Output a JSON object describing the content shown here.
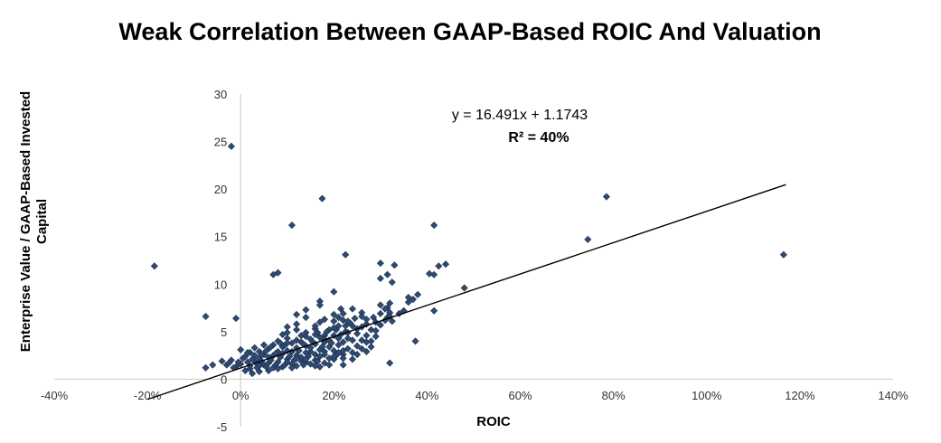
{
  "chart_data": {
    "type": "scatter",
    "title": "Weak Correlation Between GAAP-Based ROIC And Valuation",
    "xlabel": "ROIC",
    "ylabel_lines": [
      "Enterprise Value / GAAP-Based Invested",
      "Capital"
    ],
    "xlim": [
      -0.4,
      1.4
    ],
    "ylim": [
      -5,
      30
    ],
    "x_ticks": [
      -0.4,
      -0.2,
      0,
      0.2,
      0.4,
      0.6,
      0.8,
      1.0,
      1.2,
      1.4
    ],
    "x_tick_labels": [
      "-40%",
      "-20%",
      "0%",
      "20%",
      "40%",
      "60%",
      "80%",
      "100%",
      "120%",
      "140%"
    ],
    "y_ticks": [
      -5,
      0,
      5,
      10,
      15,
      20,
      25,
      30
    ],
    "y_tick_labels": [
      "-5",
      "0",
      "5",
      "10",
      "15",
      "20",
      "25",
      "30"
    ],
    "grid": false,
    "legend": "none",
    "marker": "diamond",
    "marker_color": "#2f4b73",
    "trendline": {
      "slope": 16.491,
      "intercept": 1.1743,
      "x_range": [
        -0.2,
        1.17
      ],
      "color": "#000000"
    },
    "equation_label": "y = 16.491x + 1.1743",
    "r2_label": "R² = 40%",
    "series": [
      {
        "points": [
          [
            -0.185,
            11.9
          ],
          [
            -0.075,
            6.6
          ],
          [
            -0.075,
            1.2
          ],
          [
            -0.06,
            1.5
          ],
          [
            -0.02,
            24.5
          ],
          [
            -0.01,
            6.4
          ],
          [
            0.175,
            19.0
          ],
          [
            0.11,
            16.2
          ],
          [
            0.08,
            11.2
          ],
          [
            0.07,
            11.0
          ],
          [
            0.225,
            13.1
          ],
          [
            0.415,
            16.2
          ],
          [
            0.785,
            19.2
          ],
          [
            0.745,
            14.7
          ],
          [
            1.165,
            13.1
          ],
          [
            0.48,
            9.6
          ],
          [
            0.425,
            11.9
          ],
          [
            0.44,
            12.1
          ],
          [
            0.415,
            11.0
          ],
          [
            0.405,
            11.1
          ],
          [
            0.33,
            12.0
          ],
          [
            0.3,
            12.2
          ],
          [
            0.315,
            11.0
          ],
          [
            0.325,
            10.2
          ],
          [
            0.3,
            10.6
          ],
          [
            0.38,
            8.9
          ],
          [
            0.37,
            8.4
          ],
          [
            0.36,
            8.1
          ],
          [
            0.415,
            7.2
          ],
          [
            0.375,
            4.0
          ],
          [
            0.32,
            1.7
          ],
          [
            0.285,
            6.5
          ],
          [
            0.3,
            7.8
          ],
          [
            0.315,
            7.5
          ],
          [
            0.32,
            7.0
          ],
          [
            0.325,
            6.1
          ],
          [
            0.32,
            8.0
          ],
          [
            0.315,
            6.5
          ],
          [
            0.2,
            9.2
          ],
          [
            0.17,
            8.2
          ],
          [
            0.17,
            7.8
          ],
          [
            0.215,
            7.4
          ],
          [
            0.24,
            7.4
          ],
          [
            0.26,
            7.0
          ],
          [
            0.14,
            7.3
          ],
          [
            0.12,
            6.8
          ],
          [
            0.1,
            4.9
          ],
          [
            0.12,
            5.2
          ],
          [
            0.14,
            4.9
          ],
          [
            0.16,
            5.3
          ],
          [
            0.17,
            6.0
          ],
          [
            0.18,
            4.6
          ],
          [
            0.19,
            5.2
          ],
          [
            0.2,
            6.1
          ],
          [
            0.21,
            5.6
          ],
          [
            0.22,
            6.2
          ],
          [
            0.225,
            5.0
          ],
          [
            0.23,
            4.3
          ],
          [
            0.25,
            4.8
          ],
          [
            0.26,
            5.5
          ],
          [
            0.27,
            5.8
          ],
          [
            0.28,
            5.2
          ],
          [
            0.29,
            6.0
          ],
          [
            0.24,
            4.1
          ],
          [
            0.25,
            3.5
          ],
          [
            0.27,
            3.9
          ],
          [
            0.23,
            3.2
          ],
          [
            0.21,
            3.6
          ],
          [
            0.22,
            2.6
          ],
          [
            0.2,
            3.0
          ],
          [
            0.19,
            2.2
          ],
          [
            0.18,
            1.7
          ],
          [
            0.17,
            2.4
          ],
          [
            0.16,
            2.0
          ],
          [
            0.15,
            1.6
          ],
          [
            0.14,
            2.8
          ],
          [
            0.13,
            1.9
          ],
          [
            0.12,
            2.5
          ],
          [
            0.11,
            1.6
          ],
          [
            0.1,
            2.1
          ],
          [
            0.09,
            2.7
          ],
          [
            0.08,
            1.8
          ],
          [
            0.07,
            1.2
          ],
          [
            0.06,
            2.3
          ],
          [
            0.05,
            1.5
          ],
          [
            0.04,
            0.8
          ],
          [
            0.03,
            1.9
          ],
          [
            0.02,
            1.1
          ],
          [
            0.01,
            2.4
          ],
          [
            0.0,
            1.6
          ],
          [
            -0.01,
            1.3
          ],
          [
            -0.02,
            2.0
          ],
          [
            -0.03,
            1.5
          ],
          [
            -0.04,
            1.9
          ],
          [
            0.0,
            3.1
          ],
          [
            0.02,
            2.8
          ],
          [
            0.03,
            3.3
          ],
          [
            0.05,
            2.6
          ],
          [
            0.06,
            3.2
          ],
          [
            0.08,
            2.9
          ],
          [
            0.09,
            3.4
          ],
          [
            0.1,
            3.0
          ],
          [
            0.11,
            3.8
          ],
          [
            0.12,
            3.3
          ],
          [
            0.13,
            3.9
          ],
          [
            0.14,
            3.5
          ],
          [
            0.15,
            4.2
          ],
          [
            0.16,
            3.7
          ],
          [
            0.17,
            4.4
          ],
          [
            0.18,
            3.9
          ],
          [
            0.19,
            4.1
          ],
          [
            0.2,
            4.6
          ],
          [
            0.21,
            4.3
          ],
          [
            0.22,
            3.9
          ],
          [
            0.13,
            2.3
          ],
          [
            0.12,
            1.4
          ],
          [
            0.09,
            1.3
          ],
          [
            0.07,
            2.5
          ],
          [
            0.06,
            1.7
          ],
          [
            0.04,
            2.2
          ],
          [
            0.02,
            1.4
          ],
          [
            0.01,
            0.9
          ],
          [
            0.08,
            4.0
          ],
          [
            0.1,
            4.3
          ],
          [
            0.11,
            2.9
          ],
          [
            0.14,
            1.8
          ],
          [
            0.15,
            2.9
          ],
          [
            0.16,
            2.6
          ],
          [
            0.17,
            3.1
          ],
          [
            0.18,
            2.9
          ],
          [
            0.19,
            3.4
          ],
          [
            0.2,
            2.1
          ],
          [
            0.21,
            2.8
          ],
          [
            0.23,
            4.9
          ],
          [
            0.24,
            5.6
          ],
          [
            0.26,
            4.1
          ],
          [
            0.28,
            3.4
          ],
          [
            0.29,
            4.5
          ],
          [
            0.05,
            3.6
          ],
          [
            0.04,
            2.9
          ],
          [
            0.03,
            2.5
          ],
          [
            0.07,
            3.6
          ],
          [
            0.06,
            0.9
          ],
          [
            0.11,
            1.2
          ],
          [
            0.13,
            4.6
          ],
          [
            0.15,
            3.3
          ],
          [
            0.17,
            1.3
          ],
          [
            0.19,
            1.5
          ],
          [
            0.22,
            1.5
          ],
          [
            0.25,
            2.6
          ],
          [
            0.27,
            2.9
          ],
          [
            0.16,
            5.6
          ],
          [
            0.18,
            6.3
          ],
          [
            0.2,
            6.8
          ],
          [
            0.22,
            6.9
          ],
          [
            0.14,
            6.5
          ],
          [
            0.12,
            5.8
          ],
          [
            0.1,
            5.5
          ],
          [
            0.09,
            4.7
          ],
          [
            0.085,
            3.8
          ],
          [
            0.075,
            2.7
          ],
          [
            0.065,
            2.0
          ],
          [
            0.055,
            1.3
          ],
          [
            0.045,
            1.9
          ],
          [
            0.035,
            1.6
          ],
          [
            0.025,
            2.1
          ],
          [
            0.015,
            1.8
          ],
          [
            0.005,
            2.2
          ],
          [
            -0.005,
            1.8
          ],
          [
            -0.015,
            1.2
          ],
          [
            -0.025,
            1.7
          ],
          [
            0.095,
            3.6
          ],
          [
            0.105,
            2.4
          ],
          [
            0.115,
            2.0
          ],
          [
            0.125,
            3.0
          ],
          [
            0.135,
            3.7
          ],
          [
            0.145,
            2.4
          ],
          [
            0.155,
            3.9
          ],
          [
            0.165,
            4.9
          ],
          [
            0.175,
            3.4
          ],
          [
            0.185,
            5.0
          ],
          [
            0.195,
            3.8
          ],
          [
            0.205,
            5.2
          ],
          [
            0.215,
            4.7
          ],
          [
            0.225,
            5.6
          ],
          [
            0.235,
            5.9
          ],
          [
            0.245,
            6.4
          ],
          [
            0.26,
            6.6
          ],
          [
            0.3,
            6.9
          ],
          [
            0.31,
            7.4
          ],
          [
            0.27,
            6.3
          ],
          [
            0.24,
            2.1
          ],
          [
            0.26,
            3.2
          ],
          [
            0.28,
            4.0
          ],
          [
            0.22,
            3.0
          ],
          [
            0.205,
            2.5
          ],
          [
            0.165,
            1.9
          ],
          [
            0.135,
            1.5
          ],
          [
            0.075,
            1.5
          ],
          [
            0.085,
            2.3
          ],
          [
            0.095,
            1.5
          ],
          [
            0.045,
            2.6
          ],
          [
            0.035,
            1.2
          ],
          [
            0.025,
            0.6
          ],
          [
            0.015,
            2.8
          ],
          [
            0.055,
            3.0
          ],
          [
            0.065,
            3.4
          ],
          [
            0.1,
            3.8
          ],
          [
            0.18,
            4.2
          ],
          [
            0.2,
            5.4
          ],
          [
            0.21,
            6.5
          ],
          [
            0.23,
            6.1
          ],
          [
            0.25,
            5.3
          ],
          [
            0.27,
            4.6
          ],
          [
            0.29,
            5.1
          ],
          [
            0.3,
            5.7
          ],
          [
            0.31,
            6.2
          ],
          [
            0.32,
            6.6
          ],
          [
            0.12,
            4.1
          ],
          [
            0.14,
            4.5
          ],
          [
            0.16,
            4.7
          ],
          [
            0.04,
            1.4
          ],
          [
            0.08,
            1.1
          ],
          [
            0.1,
            1.8
          ],
          [
            0.12,
            2.2
          ],
          [
            0.14,
            2.1
          ],
          [
            0.16,
            1.4
          ],
          [
            0.18,
            2.6
          ],
          [
            0.2,
            2.4
          ],
          [
            0.22,
            2.2
          ],
          [
            0.24,
            2.8
          ],
          [
            0.35,
            7.2
          ],
          [
            0.34,
            6.9
          ],
          [
            0.36,
            8.6
          ]
        ]
      }
    ]
  }
}
